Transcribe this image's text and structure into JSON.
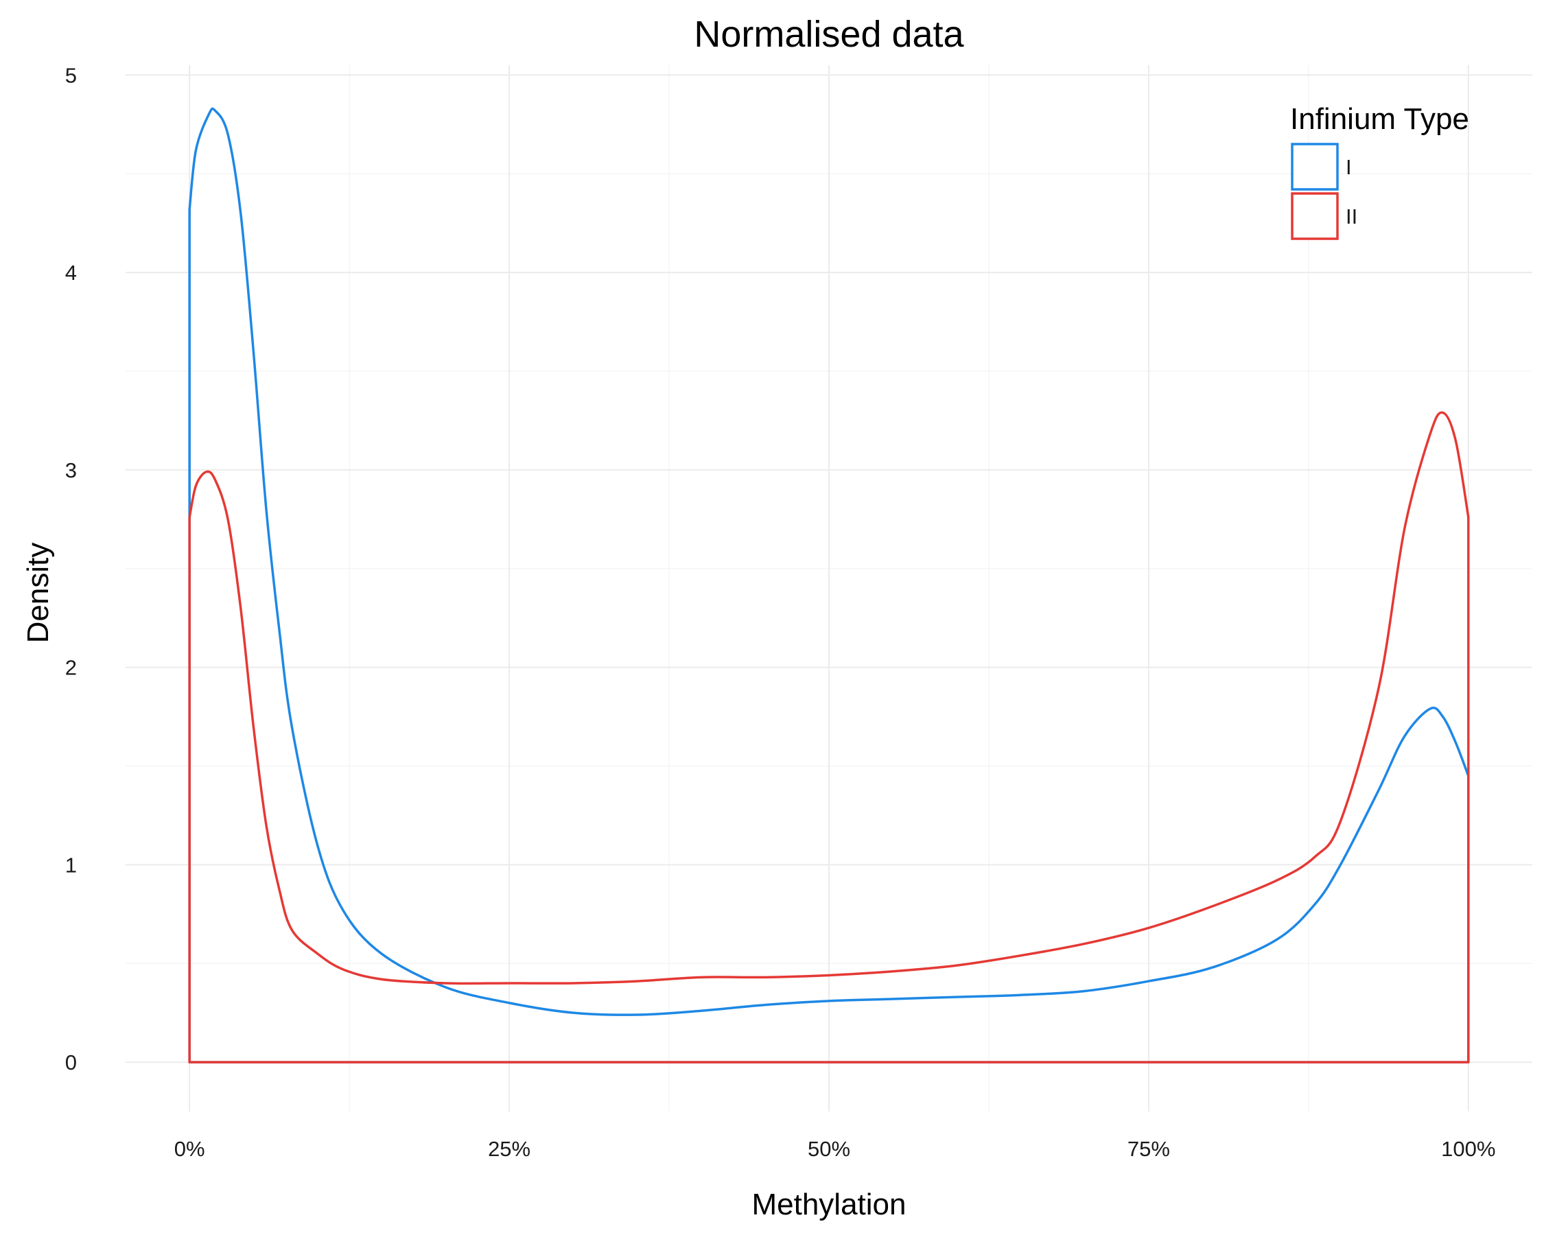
{
  "chart_data": {
    "type": "line",
    "title": "Normalised data",
    "xlabel": "Methylation",
    "ylabel": "Density",
    "xlim": [
      -0.05,
      1.05
    ],
    "ylim": [
      -0.25,
      5.05
    ],
    "x_ticks": [
      0,
      0.25,
      0.5,
      0.75,
      1.0
    ],
    "x_tick_labels": [
      "0%",
      "25%",
      "50%",
      "75%",
      "100%"
    ],
    "y_ticks": [
      0,
      1,
      2,
      3,
      4,
      5
    ],
    "y_tick_labels": [
      "0",
      "1",
      "2",
      "3",
      "4",
      "5"
    ],
    "grid": true,
    "legend": {
      "title": "Infinium Type",
      "position": "top-right"
    },
    "series": [
      {
        "name": "I",
        "color": "#1E88E5",
        "points": [
          [
            0.0,
            4.32
          ],
          [
            0.005,
            4.62
          ],
          [
            0.015,
            4.8
          ],
          [
            0.02,
            4.82
          ],
          [
            0.03,
            4.7
          ],
          [
            0.04,
            4.3
          ],
          [
            0.05,
            3.6
          ],
          [
            0.06,
            2.8
          ],
          [
            0.07,
            2.2
          ],
          [
            0.08,
            1.7
          ],
          [
            0.1,
            1.1
          ],
          [
            0.12,
            0.77
          ],
          [
            0.15,
            0.55
          ],
          [
            0.2,
            0.38
          ],
          [
            0.25,
            0.3
          ],
          [
            0.3,
            0.25
          ],
          [
            0.35,
            0.24
          ],
          [
            0.4,
            0.26
          ],
          [
            0.45,
            0.29
          ],
          [
            0.5,
            0.31
          ],
          [
            0.55,
            0.32
          ],
          [
            0.6,
            0.33
          ],
          [
            0.65,
            0.34
          ],
          [
            0.7,
            0.36
          ],
          [
            0.75,
            0.41
          ],
          [
            0.8,
            0.48
          ],
          [
            0.85,
            0.62
          ],
          [
            0.88,
            0.8
          ],
          [
            0.9,
            1.0
          ],
          [
            0.93,
            1.38
          ],
          [
            0.95,
            1.65
          ],
          [
            0.97,
            1.79
          ],
          [
            0.98,
            1.75
          ],
          [
            0.99,
            1.62
          ],
          [
            1.0,
            1.45
          ]
        ]
      },
      {
        "name": "II",
        "color": "#E53935",
        "points": [
          [
            0.0,
            2.76
          ],
          [
            0.005,
            2.92
          ],
          [
            0.013,
            2.99
          ],
          [
            0.02,
            2.95
          ],
          [
            0.03,
            2.75
          ],
          [
            0.04,
            2.3
          ],
          [
            0.05,
            1.7
          ],
          [
            0.06,
            1.2
          ],
          [
            0.07,
            0.88
          ],
          [
            0.08,
            0.67
          ],
          [
            0.1,
            0.55
          ],
          [
            0.12,
            0.47
          ],
          [
            0.15,
            0.42
          ],
          [
            0.2,
            0.4
          ],
          [
            0.25,
            0.4
          ],
          [
            0.3,
            0.4
          ],
          [
            0.35,
            0.41
          ],
          [
            0.4,
            0.43
          ],
          [
            0.45,
            0.43
          ],
          [
            0.5,
            0.44
          ],
          [
            0.55,
            0.46
          ],
          [
            0.6,
            0.49
          ],
          [
            0.65,
            0.54
          ],
          [
            0.7,
            0.6
          ],
          [
            0.75,
            0.68
          ],
          [
            0.8,
            0.79
          ],
          [
            0.85,
            0.92
          ],
          [
            0.88,
            1.04
          ],
          [
            0.9,
            1.22
          ],
          [
            0.93,
            1.9
          ],
          [
            0.95,
            2.7
          ],
          [
            0.97,
            3.18
          ],
          [
            0.98,
            3.29
          ],
          [
            0.99,
            3.15
          ],
          [
            1.0,
            2.76
          ]
        ]
      }
    ]
  }
}
